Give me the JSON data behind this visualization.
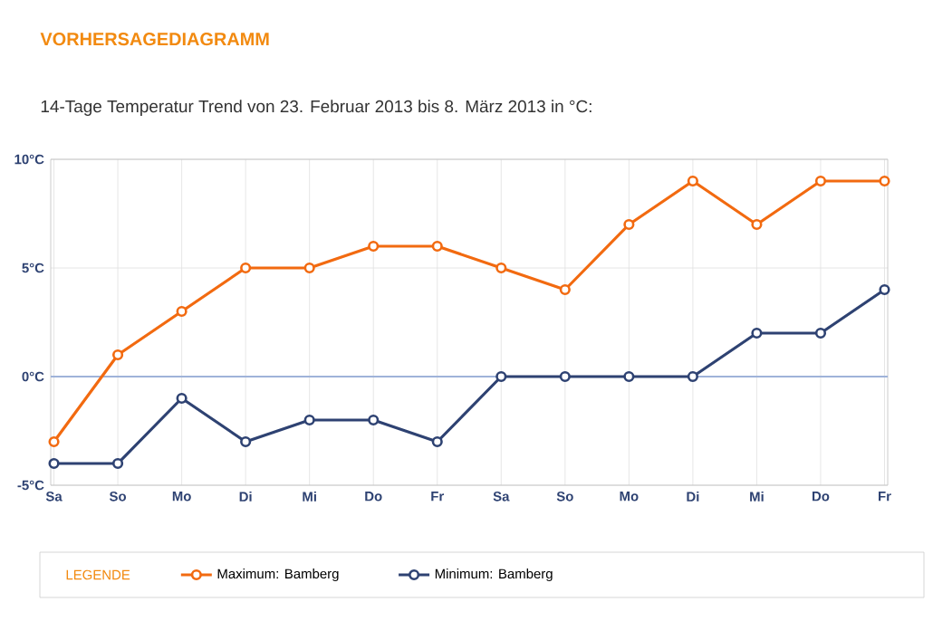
{
  "chart_data": {
    "type": "line",
    "title": "VORHERSAGEDIAGRAMM",
    "subtitle": "14-Tage Temperatur Trend von 23. Februar 2013 bis 8. März 2013 in °C:",
    "legend_title": "LEGENDE",
    "categories": [
      "Sa",
      "So",
      "Mo",
      "Di",
      "Mi",
      "Do",
      "Fr",
      "Sa",
      "So",
      "Mo",
      "Di",
      "Mi",
      "Do",
      "Fr"
    ],
    "series": [
      {
        "name": "Maximum: Bamberg",
        "color": "#f26a10",
        "values": [
          -3,
          1,
          3,
          5,
          5,
          6,
          6,
          5,
          4,
          7,
          9,
          7,
          9,
          9
        ]
      },
      {
        "name": "Minimum: Bamberg",
        "color": "#2e4272",
        "values": [
          -4,
          -4,
          -1,
          -3,
          -2,
          -2,
          -3,
          0,
          0,
          0,
          0,
          2,
          2,
          4
        ]
      }
    ],
    "ylim": [
      -5,
      10
    ],
    "yticks": [
      {
        "value": -5,
        "label": "-5°C"
      },
      {
        "value": 0,
        "label": "0°C"
      },
      {
        "value": 5,
        "label": "5°C"
      },
      {
        "value": 10,
        "label": "10°C"
      }
    ],
    "ref_lines": [
      {
        "axis": "y",
        "value": 0,
        "color": "#9fb3d9"
      }
    ],
    "grid": true,
    "legend": "bottom",
    "marker": "circle",
    "line_style": "solid"
  }
}
